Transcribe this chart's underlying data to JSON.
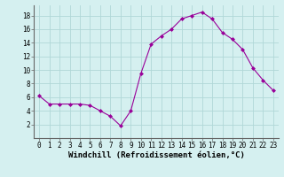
{
  "x": [
    0,
    1,
    2,
    3,
    4,
    5,
    6,
    7,
    8,
    9,
    10,
    11,
    12,
    13,
    14,
    15,
    16,
    17,
    18,
    19,
    20,
    21,
    22,
    23
  ],
  "y": [
    6.2,
    5.0,
    5.0,
    5.0,
    5.0,
    4.8,
    4.0,
    3.2,
    1.8,
    4.0,
    9.5,
    13.8,
    15.0,
    16.0,
    17.5,
    18.0,
    18.5,
    17.5,
    15.5,
    14.5,
    13.0,
    10.3,
    8.5,
    7.0
  ],
  "line_color": "#990099",
  "marker": "D",
  "marker_size": 2,
  "xlabel": "Windchill (Refroidissement éolien,°C)",
  "ylabel": "",
  "xlim": [
    -0.5,
    23.5
  ],
  "ylim": [
    0,
    19.5
  ],
  "xticks": [
    0,
    1,
    2,
    3,
    4,
    5,
    6,
    7,
    8,
    9,
    10,
    11,
    12,
    13,
    14,
    15,
    16,
    17,
    18,
    19,
    20,
    21,
    22,
    23
  ],
  "yticks": [
    2,
    4,
    6,
    8,
    10,
    12,
    14,
    16,
    18
  ],
  "background_color": "#d5f0f0",
  "grid_color": "#b0d8d8",
  "tick_label_fontsize": 5.5,
  "xlabel_fontsize": 6.5
}
